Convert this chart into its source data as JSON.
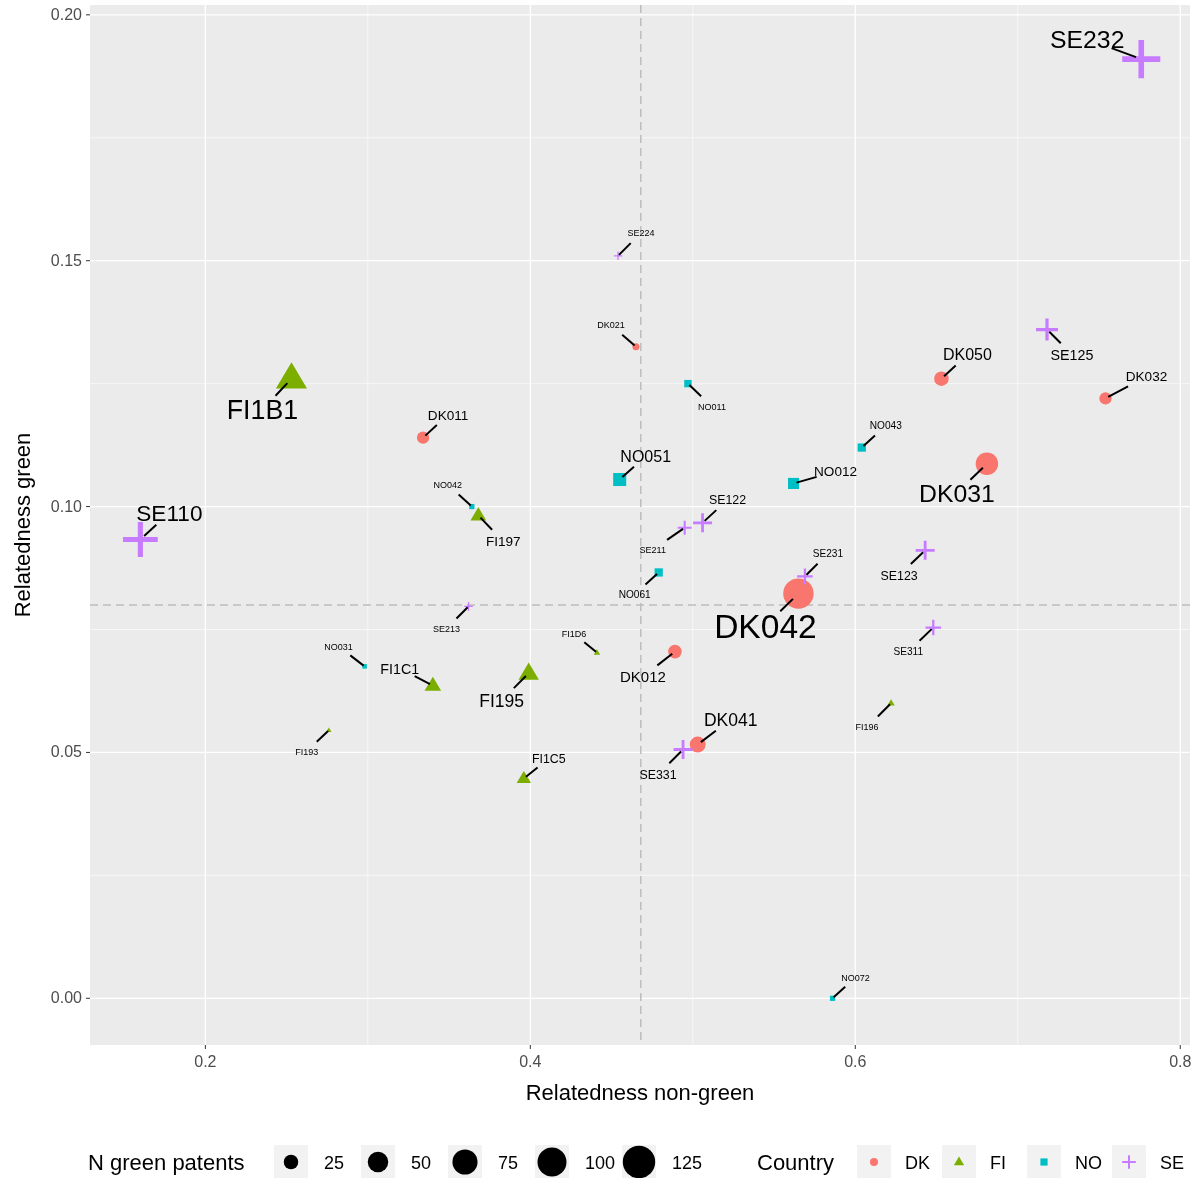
{
  "chart_data": {
    "type": "bubble",
    "xlabel": "Relatedness non-green",
    "ylabel": "Relatedness green",
    "legend_title": "Country",
    "legend": "bottom",
    "grid": true,
    "xlim": [
      0.129,
      0.806
    ],
    "ylim": [
      -0.0095,
      0.202
    ],
    "xticks": [
      0.2,
      0.4,
      0.6,
      0.8
    ],
    "yticks": [
      {
        "value": 0,
        "label": "0.00"
      },
      {
        "value": 0.05,
        "label": "0.05"
      },
      {
        "value": 0.1,
        "label": "0.10"
      },
      {
        "value": 0.15,
        "label": "0.15"
      },
      {
        "value": 0.2,
        "label": "0.20"
      }
    ],
    "size_legend": [
      25,
      50,
      75,
      100,
      125
    ],
    "ref_lines": [
      {
        "axis": "x",
        "value": 0.468,
        "color": "#bdbdbd",
        "line_style": "dashed"
      },
      {
        "axis": "y",
        "value": 0.08,
        "color": "#bdbdbd",
        "line_style": "dashed"
      }
    ],
    "series": [
      {
        "name": "DK",
        "color": "#f8766d",
        "marker": "circle",
        "x": [
          0.465,
          0.653,
          0.754,
          0.334,
          0.681,
          0.565,
          0.489,
          0.503
        ],
        "values": [
          0.1325,
          0.126,
          0.122,
          0.114,
          0.1087,
          0.0823,
          0.0705,
          0.0516
        ],
        "sizes": [
          6,
          25,
          18,
          18,
          60,
          110,
          22,
          30
        ]
      },
      {
        "name": "FI",
        "color": "#7cae00",
        "marker": "triangle",
        "x": [
          0.253,
          0.368,
          0.441,
          0.34,
          0.399,
          0.622,
          0.276,
          0.396
        ],
        "values": [
          0.126,
          0.0982,
          0.0703,
          0.0636,
          0.0661,
          0.06,
          0.0545,
          0.0447
        ],
        "sizes": [
          70,
          18,
          3,
          20,
          30,
          4,
          2,
          15
        ]
      },
      {
        "name": "NO",
        "color": "#00bfc4",
        "marker": "square",
        "x": [
          0.497,
          0.604,
          0.455,
          0.562,
          0.364,
          0.479,
          0.298,
          0.586
        ],
        "values": [
          0.125,
          0.112,
          0.1055,
          0.1047,
          0.1,
          0.0866,
          0.0675,
          0
        ],
        "sizes": [
          8,
          10,
          25,
          18,
          4,
          10,
          3,
          4
        ]
      },
      {
        "name": "SE",
        "color": "#c77cff",
        "marker": "cross",
        "x": [
          0.776,
          0.454,
          0.718,
          0.16,
          0.506,
          0.495,
          0.643,
          0.569,
          0.362,
          0.648,
          0.494
        ],
        "values": [
          0.191,
          0.151,
          0.136,
          0.0933,
          0.0967,
          0.0957,
          0.0911,
          0.0858,
          0.0797,
          0.0754,
          0.0506
        ],
        "sizes": [
          60,
          3,
          20,
          50,
          15,
          8,
          15,
          10,
          3,
          10,
          15
        ]
      }
    ],
    "annotations": [
      "N green patents",
      {
        "text": "SE232",
        "x": 0.776,
        "y": 0.191
      },
      {
        "text": "SE224",
        "x": 0.454,
        "y": 0.151
      },
      {
        "text": "DK021",
        "x": 0.465,
        "y": 0.1325
      },
      {
        "text": "SE125",
        "x": 0.718,
        "y": 0.136
      },
      {
        "text": "DK050",
        "x": 0.653,
        "y": 0.126
      },
      {
        "text": "DK032",
        "x": 0.754,
        "y": 0.122
      },
      {
        "text": "FI1B1",
        "x": 0.253,
        "y": 0.126
      },
      {
        "text": "DK011",
        "x": 0.334,
        "y": 0.114
      },
      {
        "text": "NO011",
        "x": 0.497,
        "y": 0.125
      },
      {
        "text": "NO043",
        "x": 0.604,
        "y": 0.112
      },
      {
        "text": "NO051",
        "x": 0.455,
        "y": 0.1055
      },
      {
        "text": "NO012",
        "x": 0.562,
        "y": 0.1047
      },
      {
        "text": "DK031",
        "x": 0.681,
        "y": 0.1087
      },
      {
        "text": "SE110",
        "x": 0.16,
        "y": 0.0933
      },
      {
        "text": "NO042",
        "x": 0.364,
        "y": 0.1
      },
      {
        "text": "FI197",
        "x": 0.368,
        "y": 0.0982
      },
      {
        "text": "SE122",
        "x": 0.506,
        "y": 0.0967
      },
      {
        "text": "SE211",
        "x": 0.495,
        "y": 0.0957
      },
      {
        "text": "SE123",
        "x": 0.643,
        "y": 0.0911
      },
      {
        "text": "SE231",
        "x": 0.569,
        "y": 0.0858
      },
      {
        "text": "NO061",
        "x": 0.479,
        "y": 0.0866
      },
      {
        "text": "DK042",
        "x": 0.565,
        "y": 0.0823
      },
      {
        "text": "SE213",
        "x": 0.362,
        "y": 0.0797
      },
      {
        "text": "FI1D6",
        "x": 0.441,
        "y": 0.0703
      },
      {
        "text": "DK012",
        "x": 0.489,
        "y": 0.0705
      },
      {
        "text": "NO031",
        "x": 0.298,
        "y": 0.0675
      },
      {
        "text": "FI1C1",
        "x": 0.34,
        "y": 0.0636
      },
      {
        "text": "FI195",
        "x": 0.399,
        "y": 0.0661
      },
      {
        "text": "SE311",
        "x": 0.648,
        "y": 0.0754
      },
      {
        "text": "FI196",
        "x": 0.622,
        "y": 0.06
      },
      {
        "text": "FI193",
        "x": 0.276,
        "y": 0.0545
      },
      {
        "text": "DK041",
        "x": 0.503,
        "y": 0.0516
      },
      {
        "text": "SE331",
        "x": 0.494,
        "y": 0.0506
      },
      {
        "text": "FI1C5",
        "x": 0.396,
        "y": 0.0447
      },
      {
        "text": "NO072",
        "x": 0.586,
        "y": 0
      }
    ]
  }
}
